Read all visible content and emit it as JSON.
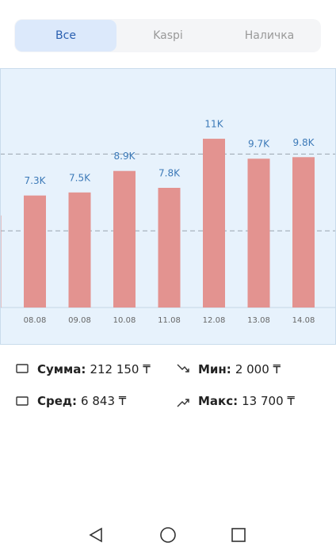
{
  "tabs": [
    "Все",
    "Kaspi",
    "Наличка"
  ],
  "selected_tab": 0,
  "chart_data": {
    "type": "bar",
    "categories": [
      null,
      "08.08",
      "09.08",
      "10.08",
      "11.08",
      "12.08",
      "13.08",
      "14.08"
    ],
    "values": [
      6000,
      7300,
      7500,
      8900,
      7800,
      11000,
      9700,
      9800
    ],
    "value_labels": [
      null,
      "7.3K",
      "7.5K",
      "8.9K",
      "7.8K",
      "11K",
      "9.7K",
      "9.8K"
    ],
    "color": "#e39390",
    "ylim": [
      0,
      15600
    ],
    "yticks": [
      5000,
      10000
    ],
    "ytick_labels": false,
    "grid": true
  },
  "stats": [
    {
      "label": "Сумма:",
      "value": "212 150 ₸"
    },
    {
      "label": "Мин:",
      "value": "2 000 ₸"
    },
    {
      "label": "Сред:",
      "value": "6 843 ₸"
    },
    {
      "label": "Макс:",
      "value": "13 700 ₸"
    }
  ]
}
